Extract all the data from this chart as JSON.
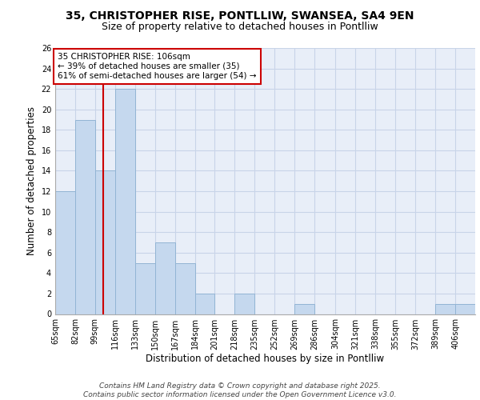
{
  "title_line1": "35, CHRISTOPHER RISE, PONTLLIW, SWANSEA, SA4 9EN",
  "title_line2": "Size of property relative to detached houses in Pontlliw",
  "xlabel": "Distribution of detached houses by size in Pontlliw",
  "ylabel": "Number of detached properties",
  "bins": [
    65,
    82,
    99,
    116,
    133,
    150,
    167,
    184,
    201,
    218,
    235,
    252,
    269,
    286,
    304,
    321,
    338,
    355,
    372,
    389,
    406
  ],
  "counts": [
    12,
    19,
    14,
    22,
    5,
    7,
    5,
    2,
    0,
    2,
    0,
    0,
    1,
    0,
    0,
    0,
    0,
    0,
    0,
    1,
    1
  ],
  "bar_color": "#c5d8ee",
  "bar_edge_color": "#92b4d4",
  "red_line_x": 106,
  "red_line_color": "#cc0000",
  "annotation_text_line1": "35 CHRISTOPHER RISE: 106sqm",
  "annotation_text_line2": "← 39% of detached houses are smaller (35)",
  "annotation_text_line3": "61% of semi-detached houses are larger (54) →",
  "annotation_box_color": "#cc0000",
  "annotation_box_fill": "white",
  "ylim": [
    0,
    26
  ],
  "yticks": [
    0,
    2,
    4,
    6,
    8,
    10,
    12,
    14,
    16,
    18,
    20,
    22,
    24,
    26
  ],
  "grid_color": "#c8d4e8",
  "background_color": "#e8eef8",
  "footer_text": "Contains HM Land Registry data © Crown copyright and database right 2025.\nContains public sector information licensed under the Open Government Licence v3.0.",
  "tick_labels": [
    "65sqm",
    "82sqm",
    "99sqm",
    "116sqm",
    "133sqm",
    "150sqm",
    "167sqm",
    "184sqm",
    "201sqm",
    "218sqm",
    "235sqm",
    "252sqm",
    "269sqm",
    "286sqm",
    "304sqm",
    "321sqm",
    "338sqm",
    "355sqm",
    "372sqm",
    "389sqm",
    "406sqm"
  ],
  "title_fontsize1": 10,
  "title_fontsize2": 9,
  "axis_label_fontsize": 8.5,
  "tick_fontsize": 7,
  "annotation_fontsize": 7.5,
  "footer_fontsize": 6.5
}
